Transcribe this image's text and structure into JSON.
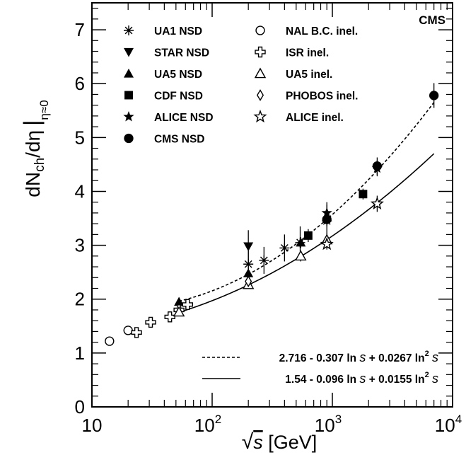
{
  "chart_data": {
    "type": "scatter",
    "x_scale": "log",
    "xlim": [
      10,
      10000
    ],
    "ylim": [
      0,
      7.5
    ],
    "x_ticks": [
      {
        "value": 10,
        "base": "10",
        "exp": ""
      },
      {
        "value": 100,
        "base": "10",
        "exp": "2"
      },
      {
        "value": 1000,
        "base": "10",
        "exp": "3"
      },
      {
        "value": 10000,
        "base": "10",
        "exp": "4"
      }
    ],
    "y_ticks": [
      "0",
      "1",
      "2",
      "3",
      "4",
      "5",
      "6",
      "7"
    ],
    "y_tick_values": [
      0,
      1,
      2,
      3,
      4,
      5,
      6,
      7
    ],
    "xlabel": {
      "sqrt_symbol": "√",
      "var": "s",
      "unit": " [GeV]"
    },
    "ylabel": {
      "d1": "dN",
      "sub1": "ch",
      "mid": "/dη",
      "sub2": "η≈0"
    },
    "experiment_label": "CMS",
    "grid": false,
    "legend_position": "top-left",
    "series": [
      {
        "name": "UA1 NSD",
        "marker": "asterisk",
        "points": [
          [
            200,
            2.65,
            0.25
          ],
          [
            270,
            2.72,
            0.25
          ],
          [
            400,
            2.95,
            0.25
          ],
          [
            540,
            3.05,
            0.3
          ],
          [
            900,
            3.45,
            0.35
          ]
        ]
      },
      {
        "name": "STAR NSD",
        "marker": "triangle-down-filled",
        "points": [
          [
            200,
            2.98,
            0.3
          ]
        ]
      },
      {
        "name": "UA5 NSD",
        "marker": "triangle-up-filled",
        "points": [
          [
            53,
            1.95,
            0.05
          ],
          [
            200,
            2.48,
            0.1
          ],
          [
            546,
            3.05,
            0.1
          ],
          [
            900,
            3.52,
            0.12
          ]
        ]
      },
      {
        "name": "CDF NSD",
        "marker": "square-filled",
        "points": [
          [
            630,
            3.18,
            0.12
          ],
          [
            1800,
            3.95,
            0.1
          ]
        ]
      },
      {
        "name": "ALICE NSD",
        "marker": "star-filled",
        "points": [
          [
            900,
            3.6,
            0.15
          ],
          [
            2360,
            4.43,
            0.15
          ]
        ]
      },
      {
        "name": "CMS NSD",
        "marker": "circle-filled",
        "points": [
          [
            900,
            3.48,
            0.13
          ],
          [
            2360,
            4.47,
            0.16
          ],
          [
            7000,
            5.78,
            0.23
          ]
        ]
      },
      {
        "name": "NAL B.C. inel.",
        "marker": "circle-open",
        "points": [
          [
            14,
            1.22,
            0.0
          ],
          [
            20,
            1.42,
            0.0
          ]
        ]
      },
      {
        "name": "ISR inel.",
        "marker": "cross-open",
        "points": [
          [
            23.5,
            1.38,
            0.0
          ],
          [
            30.8,
            1.57,
            0.0
          ],
          [
            44.5,
            1.67,
            0.0
          ],
          [
            53,
            1.8,
            0.0
          ],
          [
            62.5,
            1.9,
            0.0
          ]
        ]
      },
      {
        "name": "UA5 inel.",
        "marker": "triangle-up-open",
        "points": [
          [
            53,
            1.76,
            0.05
          ],
          [
            200,
            2.27,
            0.08
          ],
          [
            546,
            2.8,
            0.1
          ],
          [
            900,
            3.1,
            0.12
          ]
        ]
      },
      {
        "name": "PHOBOS inel.",
        "marker": "diamond-open",
        "points": [
          [
            200,
            2.33,
            0.1
          ]
        ]
      },
      {
        "name": "ALICE inel.",
        "marker": "star-open",
        "points": [
          [
            900,
            3.02,
            0.1
          ],
          [
            2360,
            3.77,
            0.15
          ]
        ]
      }
    ],
    "fits": [
      {
        "label_parts": [
          "2.716 - 0.307 ln ",
          "s",
          " + 0.0267 ln",
          "2",
          " ",
          "s"
        ],
        "style": "dashed",
        "a": 2.716,
        "b": -0.307,
        "c": 0.0267,
        "x_range": [
          53,
          7000
        ]
      },
      {
        "label_parts": [
          "1.54 - 0.096 ln ",
          "s",
          " + 0.0155 ln",
          "2",
          " ",
          "s"
        ],
        "style": "solid",
        "a": 1.54,
        "b": -0.096,
        "c": 0.0155,
        "x_range": [
          53,
          7000
        ]
      }
    ]
  }
}
